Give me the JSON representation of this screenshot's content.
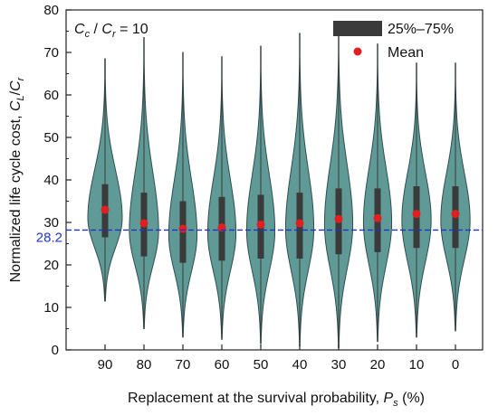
{
  "chart_data": {
    "type": "violin",
    "categories": [
      "90",
      "80",
      "70",
      "60",
      "50",
      "40",
      "30",
      "20",
      "10",
      "0"
    ],
    "xlabel": {
      "main": "Replacement at the survival probability, ",
      "var": "P",
      "sub": "s",
      "unit": " (%)"
    },
    "ylabel": {
      "main": "Normalized life cycle cost, ",
      "num": "C",
      "num_sub": "L",
      "slash": "/",
      "den": "C",
      "den_sub": "r"
    },
    "annotation": {
      "c1": "C",
      "c1_sub": "c",
      "sep": " / ",
      "c2": "C",
      "c2_sub": "r",
      "eq": " = 10"
    },
    "ylim": [
      0,
      80
    ],
    "yticks": [
      0,
      10,
      20,
      30,
      40,
      50,
      60,
      70,
      80
    ],
    "reference_line": {
      "value": 28.2,
      "label": "28.2",
      "color": "#2233cc"
    },
    "legend": {
      "iqr_label": "25%–75%",
      "mean_label": "Mean",
      "placement": "top-right"
    },
    "colors": {
      "violin_fill": "#5f9a96",
      "violin_edge": "#2f4f4d",
      "box": "#3a3a3a",
      "mean": "#e02020"
    },
    "series": [
      {
        "category": "90",
        "min": 11.5,
        "max": 68.5,
        "q1": 26.5,
        "q3": 39,
        "mean": 33,
        "mode": 31,
        "width": 1.0
      },
      {
        "category": "80",
        "min": 5,
        "max": 73.5,
        "q1": 22,
        "q3": 37,
        "mean": 29.8,
        "mode": 28,
        "width": 0.85
      },
      {
        "category": "70",
        "min": 3,
        "max": 70,
        "q1": 20.5,
        "q3": 35,
        "mean": 28.5,
        "mode": 27,
        "width": 0.82
      },
      {
        "category": "60",
        "min": 2.5,
        "max": 69,
        "q1": 21,
        "q3": 36,
        "mean": 28.8,
        "mode": 27.5,
        "width": 0.82
      },
      {
        "category": "50",
        "min": 1.5,
        "max": 71.5,
        "q1": 21.5,
        "q3": 36.5,
        "mean": 29.5,
        "mode": 28,
        "width": 0.82
      },
      {
        "category": "40",
        "min": 1,
        "max": 74.5,
        "q1": 21.5,
        "q3": 37,
        "mean": 29.8,
        "mode": 28.5,
        "width": 0.82
      },
      {
        "category": "30",
        "min": 0.5,
        "max": 75.5,
        "q1": 22.5,
        "q3": 38,
        "mean": 30.8,
        "mode": 29.5,
        "width": 0.82
      },
      {
        "category": "20",
        "min": 2,
        "max": 72,
        "q1": 23,
        "q3": 38,
        "mean": 31,
        "mode": 30,
        "width": 0.82
      },
      {
        "category": "10",
        "min": 3,
        "max": 67.5,
        "q1": 24,
        "q3": 38.5,
        "mean": 32,
        "mode": 30.5,
        "width": 0.85
      },
      {
        "category": "0",
        "min": 4.5,
        "max": 67.5,
        "q1": 24,
        "q3": 38.5,
        "mean": 32,
        "mode": 30.5,
        "width": 0.85
      }
    ]
  }
}
